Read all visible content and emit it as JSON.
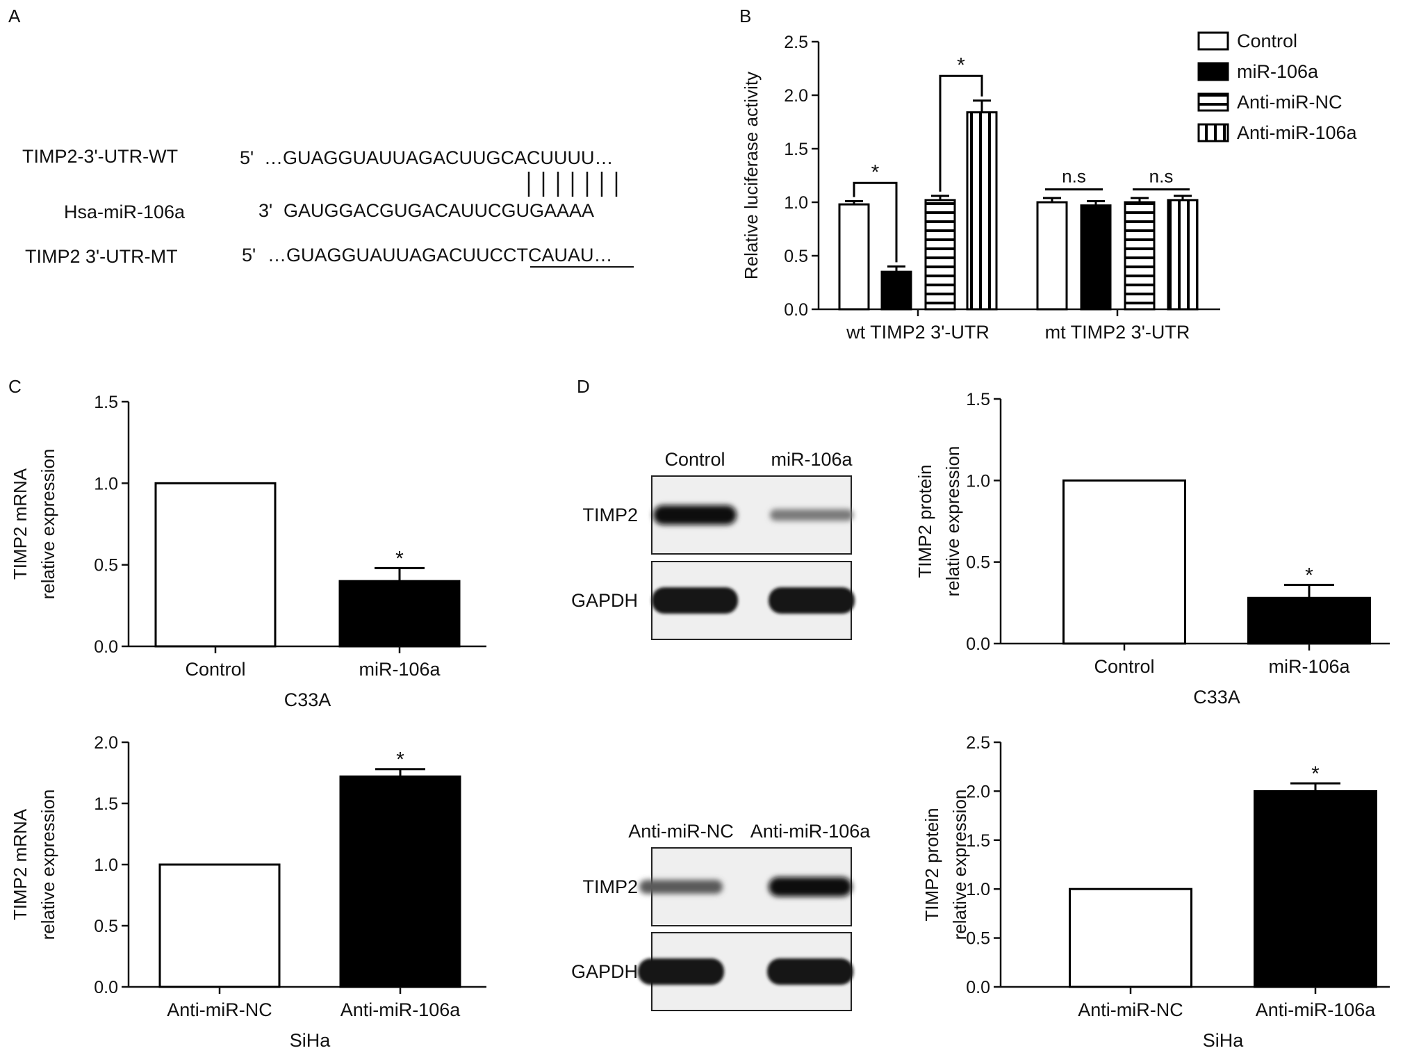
{
  "panels": {
    "a": {
      "letter": "A",
      "rows": [
        {
          "name": "TIMP2-3'-UTR-WT",
          "prefix": "5'",
          "sequence": "…GUAGGUAUUAGACUUGCACUUUU…"
        },
        {
          "name": "Hsa-miR-106a",
          "prefix": "3'",
          "sequence": "GAUGGACGUGACAUUCGUGAAAA"
        },
        {
          "name": "TIMP2 3'-UTR-MT",
          "prefix": "5'",
          "sequence": "…GUAGGUAUUAGACUUCCTCAUAU…"
        }
      ],
      "pairing_lines": 7
    },
    "b": {
      "letter": "B"
    },
    "c": {
      "letter": "C"
    },
    "d": {
      "letter": "D"
    }
  },
  "blots": [
    {
      "lanes": [
        "Control",
        "miR-106a"
      ],
      "bands": [
        "TIMP2",
        "GAPDH"
      ],
      "timp2_intensity": [
        1.0,
        0.3
      ]
    },
    {
      "lanes": [
        "Anti-miR-NC",
        "Anti-miR-106a"
      ],
      "bands": [
        "TIMP2",
        "GAPDH"
      ],
      "timp2_intensity": [
        0.5,
        1.0
      ]
    }
  ],
  "chart_data": [
    {
      "id": "chartB",
      "type": "bar",
      "ylabel": "Relative luciferase activity",
      "ylim": [
        0,
        2.5
      ],
      "yticks": [
        "0.0",
        "0.5",
        "1.0",
        "1.5",
        "2.0",
        "2.5"
      ],
      "groups": [
        "wt TIMP2 3'-UTR",
        "mt TIMP2 3'-UTR"
      ],
      "legend_position": "top-right",
      "series": [
        {
          "name": "Control",
          "pattern": "white",
          "values": [
            0.98,
            1.0
          ],
          "errors": [
            0.03,
            0.04
          ]
        },
        {
          "name": "miR-106a",
          "pattern": "black",
          "values": [
            0.35,
            0.97
          ],
          "errors": [
            0.05,
            0.04
          ]
        },
        {
          "name": "Anti-miR-NC",
          "pattern": "hstripe",
          "values": [
            1.02,
            1.0
          ],
          "errors": [
            0.04,
            0.04
          ]
        },
        {
          "name": "Anti-miR-106a",
          "pattern": "vstripe",
          "values": [
            1.84,
            1.02
          ],
          "errors": [
            0.11,
            0.04
          ]
        }
      ],
      "annotations": [
        {
          "text": "*",
          "from": [
            0,
            0
          ],
          "to": [
            0,
            1
          ],
          "y": 1.18
        },
        {
          "text": "*",
          "from": [
            0,
            2
          ],
          "to": [
            0,
            3
          ],
          "y": 2.18
        },
        {
          "text": "n.s",
          "from": [
            1,
            0
          ],
          "to": [
            1,
            1
          ],
          "y": 1.12
        },
        {
          "text": "n.s",
          "from": [
            1,
            2
          ],
          "to": [
            1,
            3
          ],
          "y": 1.12
        }
      ]
    },
    {
      "id": "chartC1",
      "type": "bar",
      "ylabel": [
        "TIMP2 mRNA",
        "relative expression"
      ],
      "ylim": [
        0,
        1.5
      ],
      "yticks": [
        "0.0",
        "0.5",
        "1.0",
        "1.5"
      ],
      "categories": [
        "Control",
        "miR-106a"
      ],
      "values": [
        1.0,
        0.4
      ],
      "errors": [
        0,
        0.08
      ],
      "fills": [
        "white",
        "black"
      ],
      "sig": [
        "",
        "*"
      ],
      "xlabel": "C33A"
    },
    {
      "id": "chartC2",
      "type": "bar",
      "ylabel": [
        "TIMP2 mRNA",
        "relative expression"
      ],
      "ylim": [
        0,
        2.0
      ],
      "yticks": [
        "0.0",
        "0.5",
        "1.0",
        "1.5",
        "2.0"
      ],
      "categories": [
        "Anti-miR-NC",
        "Anti-miR-106a"
      ],
      "values": [
        1.0,
        1.72
      ],
      "errors": [
        0,
        0.06
      ],
      "fills": [
        "white",
        "black"
      ],
      "sig": [
        "",
        "*"
      ],
      "xlabel": "SiHa"
    },
    {
      "id": "chartD1",
      "type": "bar",
      "ylabel": [
        "TIMP2 protein",
        "relative expression"
      ],
      "ylim": [
        0,
        1.5
      ],
      "yticks": [
        "0.0",
        "0.5",
        "1.0",
        "1.5"
      ],
      "categories": [
        "Control",
        "miR-106a"
      ],
      "values": [
        1.0,
        0.28
      ],
      "errors": [
        0,
        0.08
      ],
      "fills": [
        "white",
        "black"
      ],
      "sig": [
        "",
        "*"
      ],
      "xlabel": "C33A"
    },
    {
      "id": "chartD2",
      "type": "bar",
      "ylabel": [
        "TIMP2 protein",
        "relative expression"
      ],
      "ylim": [
        0,
        2.5
      ],
      "yticks": [
        "0.0",
        "0.5",
        "1.0",
        "1.5",
        "2.0",
        "2.5"
      ],
      "categories": [
        "Anti-miR-NC",
        "Anti-miR-106a"
      ],
      "values": [
        1.0,
        2.0
      ],
      "errors": [
        0,
        0.08
      ],
      "fills": [
        "white",
        "black"
      ],
      "sig": [
        "",
        "*"
      ],
      "xlabel": "SiHa"
    }
  ]
}
